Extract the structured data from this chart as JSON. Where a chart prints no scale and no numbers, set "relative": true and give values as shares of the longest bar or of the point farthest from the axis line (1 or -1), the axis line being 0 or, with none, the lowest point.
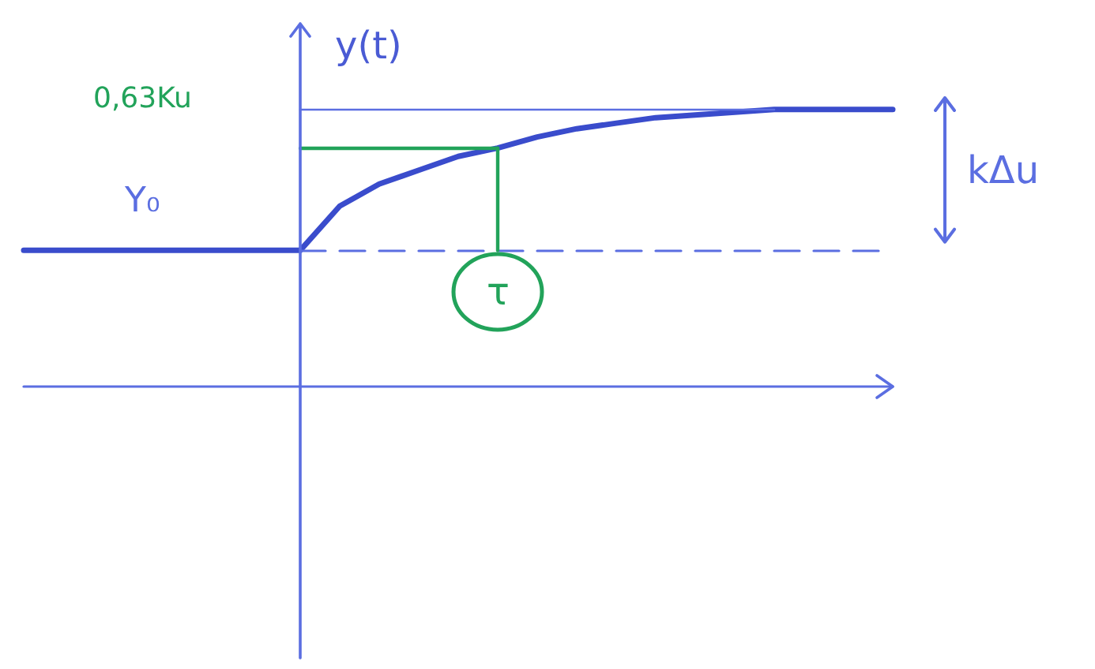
{
  "chart_data": {
    "type": "line",
    "ylabel": "y(t)",
    "relative": true,
    "categories": [
      null,
      null,
      null,
      null,
      null,
      null,
      null,
      null,
      null,
      null,
      null,
      null,
      null,
      null,
      null,
      null,
      null,
      null,
      null,
      null,
      null,
      null,
      null
    ],
    "values": [
      0.49,
      0.49,
      0.49,
      0.49,
      0.49,
      0.49,
      0.49,
      0.49,
      0.65,
      0.73,
      0.78,
      0.83,
      0.86,
      0.9,
      0.93,
      0.95,
      0.97,
      0.98,
      0.99,
      1,
      1,
      1,
      1
    ],
    "color": "#3a4ccc",
    "marker": "none",
    "line_style": "solid",
    "grid": false,
    "ref_lines": [
      {
        "axis": "y",
        "value": 1,
        "color": "#5b6ee1"
      },
      {
        "axis": "y",
        "value": 0.49,
        "color": "#5b6ee1",
        "line_style": "dashed",
        "label": "Y₀"
      },
      {
        "axis": "y",
        "value": 0.86,
        "color": "#22a35a",
        "label": "0,63Ku"
      }
    ],
    "annotations": [
      "τ",
      "kΔu"
    ]
  }
}
